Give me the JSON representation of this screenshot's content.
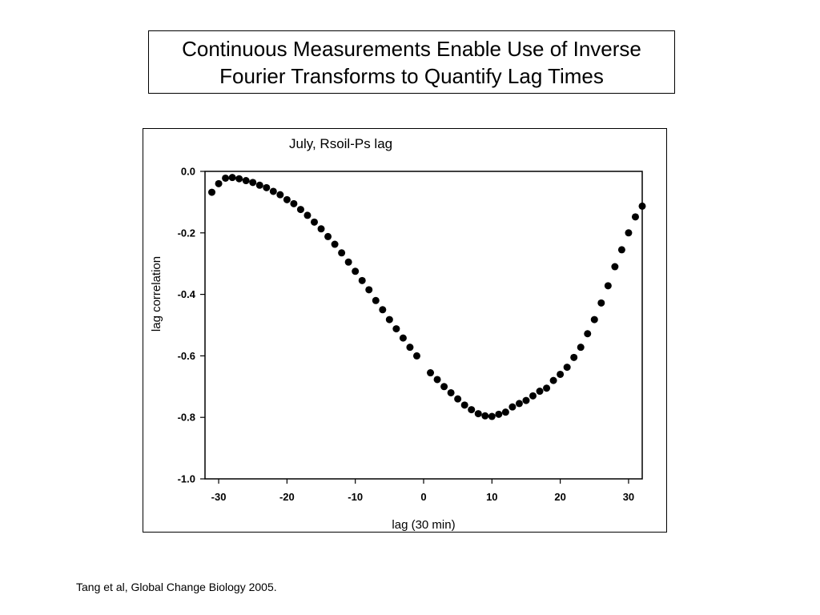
{
  "slide": {
    "title_lines": [
      "Continuous Measurements Enable Use of Inverse",
      "Fourier Transforms to Quantify Lag Times"
    ],
    "citation": "Tang et al, Global Change Biology 2005."
  },
  "chart_data": {
    "type": "scatter",
    "title": "July, Rsoil-Ps lag",
    "xlabel": "lag (30 min)",
    "ylabel": "lag correlation",
    "xlim": [
      -32,
      32
    ],
    "ylim": [
      -1.0,
      0.0
    ],
    "xticks": [
      -30,
      -20,
      -10,
      0,
      10,
      20,
      30
    ],
    "xtick_labels": [
      "-30",
      "-20",
      "-10",
      "0",
      "10",
      "20",
      "30"
    ],
    "yticks": [
      0.0,
      -0.2,
      -0.4,
      -0.6,
      -0.8,
      -1.0
    ],
    "ytick_labels": [
      "0.0",
      "-0.2",
      "-0.4",
      "-0.6",
      "-0.8",
      "-1.0"
    ],
    "grid": false,
    "marker_color": "#000000",
    "x": [
      -31,
      -30,
      -29,
      -28,
      -27,
      -26,
      -25,
      -24,
      -23,
      -22,
      -21,
      -20,
      -19,
      -18,
      -17,
      -16,
      -15,
      -14,
      -13,
      -12,
      -11,
      -10,
      -9,
      -8,
      -7,
      -6,
      -5,
      -4,
      -3,
      -2,
      -1,
      1,
      2,
      3,
      4,
      5,
      6,
      7,
      8,
      9,
      10,
      11,
      12,
      13,
      14,
      15,
      16,
      17,
      18,
      19,
      20,
      21,
      22,
      23,
      24,
      25,
      26,
      27,
      28,
      29,
      30,
      31,
      32
    ],
    "y": [
      -0.068,
      -0.04,
      -0.022,
      -0.02,
      -0.024,
      -0.03,
      -0.036,
      -0.045,
      -0.053,
      -0.065,
      -0.076,
      -0.092,
      -0.105,
      -0.124,
      -0.143,
      -0.165,
      -0.187,
      -0.212,
      -0.237,
      -0.265,
      -0.295,
      -0.325,
      -0.355,
      -0.385,
      -0.42,
      -0.45,
      -0.482,
      -0.512,
      -0.542,
      -0.572,
      -0.6,
      -0.655,
      -0.677,
      -0.7,
      -0.72,
      -0.74,
      -0.76,
      -0.775,
      -0.788,
      -0.795,
      -0.797,
      -0.79,
      -0.783,
      -0.766,
      -0.755,
      -0.745,
      -0.73,
      -0.715,
      -0.705,
      -0.68,
      -0.66,
      -0.637,
      -0.605,
      -0.572,
      -0.528,
      -0.482,
      -0.428,
      -0.372,
      -0.31,
      -0.255,
      -0.2,
      -0.148,
      -0.113
    ]
  }
}
